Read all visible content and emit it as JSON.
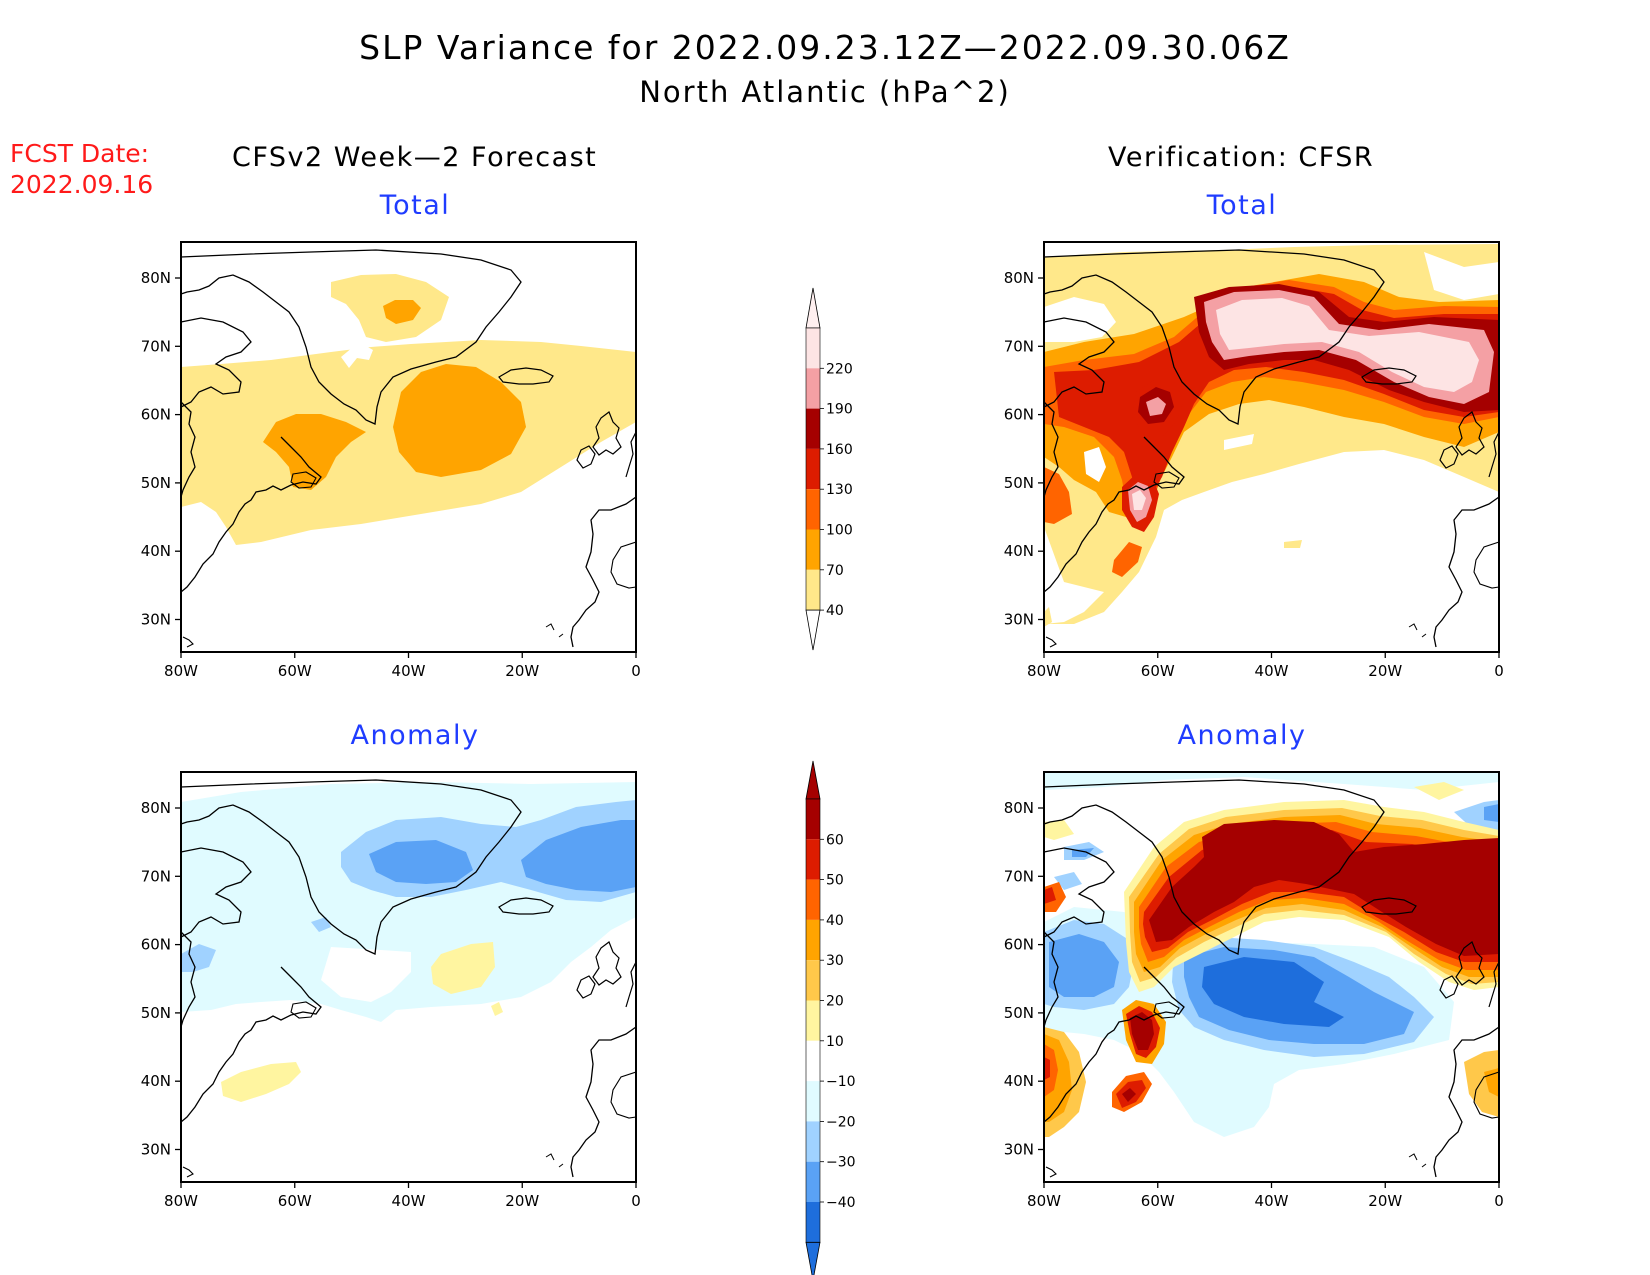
{
  "title": "SLP Variance for 2022.09.23.12Z—2022.09.30.06Z",
  "subtitle": "North Atlantic (hPa^2)",
  "fcst": {
    "line1": "FCST Date:",
    "line2": "2022.09.16"
  },
  "columns": {
    "left": "CFSv2 Week—2 Forecast",
    "right": "Verification: CFSR"
  },
  "panels": {
    "tl": "Total",
    "tr": "Total",
    "bl": "Anomaly",
    "br": "Anomaly"
  },
  "axes": {
    "lon_labels": [
      "80W",
      "60W",
      "40W",
      "20W",
      "0"
    ],
    "lat_labels": [
      "80N",
      "70N",
      "60N",
      "50N",
      "40N",
      "30N"
    ]
  },
  "colorbars": {
    "total": {
      "labels": [
        "220",
        "190",
        "160",
        "130",
        "100",
        "70",
        "40"
      ],
      "colors": [
        "#fde4e4",
        "#f4a0a4",
        "#a50000",
        "#dd1c00",
        "#ff6400",
        "#ffa400",
        "#ffe88a"
      ]
    },
    "anomaly": {
      "labels": [
        "60",
        "50",
        "40",
        "30",
        "20",
        "10",
        "−10",
        "−20",
        "−30",
        "−40"
      ],
      "colors": [
        "#a50000",
        "#dd1c00",
        "#ff6400",
        "#ffa400",
        "#ffc84a",
        "#fff5a0",
        "#ffffff",
        "#e0fbff",
        "#a0d2ff",
        "#5aa2f5",
        "#1e6edc"
      ]
    }
  },
  "colors": {
    "title_blue": "#1f3cff",
    "fcst_red": "#ff1a1a"
  }
}
